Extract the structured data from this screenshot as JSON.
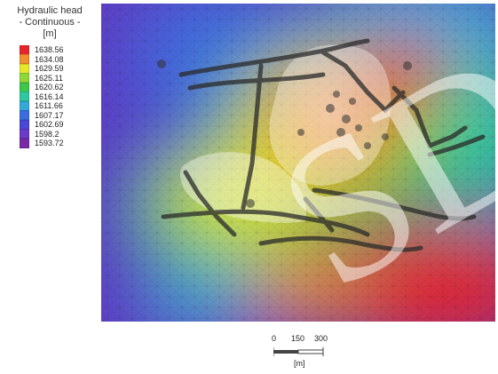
{
  "legend": {
    "title_line1": "Hydraulic head",
    "title_line2": "- Continuous -",
    "unit": "[m]",
    "items": [
      {
        "value": "1638.56",
        "color": "#e8252a"
      },
      {
        "value": "1634.08",
        "color": "#f28f2e"
      },
      {
        "value": "1629.59",
        "color": "#e8e82a"
      },
      {
        "value": "1625.11",
        "color": "#8fd83a"
      },
      {
        "value": "1620.62",
        "color": "#3cc84a"
      },
      {
        "value": "1616.14",
        "color": "#2ec8a0"
      },
      {
        "value": "1611.66",
        "color": "#34a8d8"
      },
      {
        "value": "1607.17",
        "color": "#3a6ee0"
      },
      {
        "value": "1602.69",
        "color": "#4a46d8"
      },
      {
        "value": "1598.2",
        "color": "#6a3ac8"
      },
      {
        "value": "1593.72",
        "color": "#7a2aa8"
      }
    ]
  },
  "scalebar": {
    "label_0": "0",
    "label_150": "150",
    "label_300": "300",
    "unit": "[m]"
  },
  "watermark": "SD"
}
